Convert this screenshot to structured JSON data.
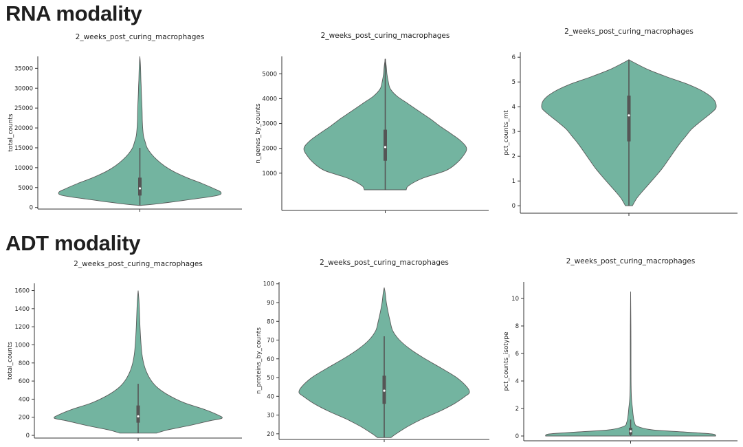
{
  "sections": {
    "rna": {
      "heading": "RNA modality"
    },
    "adt": {
      "heading": "ADT modality"
    }
  },
  "colors": {
    "violin_fill": "#73b4a0",
    "violin_edge": "#5a5a5a",
    "box": "#555555",
    "axis": "#333333"
  },
  "chart_data": [
    {
      "type": "violin",
      "section": "rna",
      "title": "2_weeks_post_curing_macrophages",
      "xlabel": "",
      "ylabel": "total_counts",
      "ylim": [
        -400,
        38000
      ],
      "yticks": [
        0,
        5000,
        10000,
        15000,
        20000,
        25000,
        30000,
        35000
      ],
      "ytick_labels": [
        "0",
        "5000",
        "10000",
        "15000",
        "20000",
        "25000",
        "30000",
        "35000"
      ],
      "categories": [
        "2_weeks_post_curing_macrophages"
      ],
      "density": [
        [
          500,
          0
        ],
        [
          1000,
          0.25
        ],
        [
          2000,
          0.62
        ],
        [
          3000,
          0.95
        ],
        [
          3800,
          1
        ],
        [
          4600,
          0.93
        ],
        [
          6000,
          0.77
        ],
        [
          7500,
          0.58
        ],
        [
          9000,
          0.42
        ],
        [
          10500,
          0.3
        ],
        [
          12000,
          0.21
        ],
        [
          13500,
          0.14
        ],
        [
          15000,
          0.09
        ],
        [
          16500,
          0.065
        ],
        [
          18000,
          0.045
        ],
        [
          20000,
          0.035
        ],
        [
          22000,
          0.03
        ],
        [
          24000,
          0.028
        ],
        [
          26000,
          0.025
        ],
        [
          28000,
          0.02
        ],
        [
          30000,
          0.017
        ],
        [
          32000,
          0.013
        ],
        [
          34000,
          0.01
        ],
        [
          36000,
          0.007
        ],
        [
          38000,
          0
        ]
      ],
      "box": {
        "q1": 3000,
        "median": 4800,
        "q3": 7500,
        "whisker_low": 500,
        "whisker_high": 15000
      }
    },
    {
      "type": "violin",
      "section": "rna",
      "title": "2_weeks_post_curing_macrophages",
      "xlabel": "",
      "ylabel": "n_genes_by_counts",
      "ylim": [
        -500,
        5700
      ],
      "yticks": [
        1000,
        2000,
        3000,
        4000,
        5000
      ],
      "ytick_labels": [
        "1000",
        "2000",
        "3000",
        "4000",
        "5000"
      ],
      "categories": [
        "2_weeks_post_curing_macrophages"
      ],
      "density": [
        [
          330,
          0.25
        ],
        [
          500,
          0.28
        ],
        [
          800,
          0.45
        ],
        [
          1100,
          0.72
        ],
        [
          1400,
          0.85
        ],
        [
          1700,
          0.93
        ],
        [
          2000,
          0.97
        ],
        [
          2300,
          0.9
        ],
        [
          2600,
          0.78
        ],
        [
          2900,
          0.65
        ],
        [
          3200,
          0.53
        ],
        [
          3500,
          0.4
        ],
        [
          3800,
          0.27
        ],
        [
          4100,
          0.14
        ],
        [
          4400,
          0.06
        ],
        [
          4700,
          0.035
        ],
        [
          5000,
          0.02
        ],
        [
          5300,
          0.012
        ],
        [
          5600,
          0
        ]
      ],
      "box": {
        "q1": 1500,
        "median": 2050,
        "q3": 2750,
        "whisker_low": 330,
        "whisker_high": 5600
      }
    },
    {
      "type": "violin",
      "section": "rna",
      "title": "2_weeks_post_curing_macrophages",
      "xlabel": "",
      "ylabel": "pct_counts_mt",
      "ylim": [
        -0.3,
        6.2
      ],
      "yticks": [
        0,
        1,
        2,
        3,
        4,
        5,
        6
      ],
      "ytick_labels": [
        "0",
        "1",
        "2",
        "3",
        "4",
        "5",
        "6"
      ],
      "categories": [
        "2_weeks_post_curing_macrophages"
      ],
      "density": [
        [
          0,
          0.04
        ],
        [
          0.3,
          0.09
        ],
        [
          0.6,
          0.16
        ],
        [
          1.0,
          0.26
        ],
        [
          1.5,
          0.38
        ],
        [
          2.0,
          0.48
        ],
        [
          2.5,
          0.58
        ],
        [
          2.8,
          0.65
        ],
        [
          3.1,
          0.72
        ],
        [
          3.4,
          0.82
        ],
        [
          3.8,
          0.96
        ],
        [
          4.0,
          1
        ],
        [
          4.3,
          0.97
        ],
        [
          4.6,
          0.86
        ],
        [
          4.9,
          0.68
        ],
        [
          5.2,
          0.44
        ],
        [
          5.5,
          0.22
        ],
        [
          5.8,
          0.05
        ],
        [
          5.9,
          0
        ]
      ],
      "box": {
        "q1": 2.6,
        "median": 3.65,
        "q3": 4.45,
        "whisker_low": 0,
        "whisker_high": 5.9
      }
    },
    {
      "type": "violin",
      "section": "adt",
      "title": "2_weeks_post_curing_macrophages",
      "xlabel": "",
      "ylabel": "total_counts",
      "ylim": [
        -30,
        1680
      ],
      "yticks": [
        0,
        200,
        400,
        600,
        800,
        1000,
        1200,
        1400,
        1600
      ],
      "ytick_labels": [
        "0",
        "200",
        "400",
        "600",
        "800",
        "1000",
        "1200",
        "1400",
        "1600"
      ],
      "categories": [
        "2_weeks_post_curing_macrophages"
      ],
      "density": [
        [
          25,
          0.22
        ],
        [
          60,
          0.35
        ],
        [
          110,
          0.62
        ],
        [
          160,
          0.85
        ],
        [
          190,
          1
        ],
        [
          230,
          0.94
        ],
        [
          290,
          0.78
        ],
        [
          360,
          0.55
        ],
        [
          440,
          0.37
        ],
        [
          520,
          0.24
        ],
        [
          600,
          0.16
        ],
        [
          700,
          0.1
        ],
        [
          800,
          0.065
        ],
        [
          900,
          0.045
        ],
        [
          1000,
          0.035
        ],
        [
          1100,
          0.028
        ],
        [
          1200,
          0.022
        ],
        [
          1300,
          0.018
        ],
        [
          1400,
          0.014
        ],
        [
          1500,
          0.009
        ],
        [
          1600,
          0
        ]
      ],
      "box": {
        "q1": 140,
        "median": 210,
        "q3": 330,
        "whisker_low": 25,
        "whisker_high": 570
      }
    },
    {
      "type": "violin",
      "section": "adt",
      "title": "2_weeks_post_curing_macrophages",
      "xlabel": "",
      "ylabel": "n_proteins_by_counts",
      "ylim": [
        17,
        101
      ],
      "yticks": [
        20,
        30,
        40,
        50,
        60,
        70,
        80,
        90,
        100
      ],
      "ytick_labels": [
        "20",
        "30",
        "40",
        "50",
        "60",
        "70",
        "80",
        "90",
        "100"
      ],
      "categories": [
        "2_weeks_post_curing_macrophages"
      ],
      "density": [
        [
          18,
          0.08
        ],
        [
          20,
          0.14
        ],
        [
          24,
          0.28
        ],
        [
          28,
          0.45
        ],
        [
          32,
          0.65
        ],
        [
          36,
          0.82
        ],
        [
          40,
          0.95
        ],
        [
          42,
          1
        ],
        [
          45,
          0.97
        ],
        [
          50,
          0.85
        ],
        [
          55,
          0.67
        ],
        [
          60,
          0.48
        ],
        [
          65,
          0.31
        ],
        [
          70,
          0.18
        ],
        [
          75,
          0.1
        ],
        [
          80,
          0.07
        ],
        [
          85,
          0.045
        ],
        [
          90,
          0.025
        ],
        [
          95,
          0.012
        ],
        [
          98,
          0
        ]
      ],
      "box": {
        "q1": 36,
        "median": 43,
        "q3": 51,
        "whisker_low": 18,
        "whisker_high": 72
      }
    },
    {
      "type": "violin",
      "section": "adt",
      "title": "2_weeks_post_curing_macrophages",
      "xlabel": "",
      "ylabel": "pct_counts_isotype",
      "ylim": [
        -0.35,
        11.2
      ],
      "yticks": [
        0,
        2,
        4,
        6,
        8,
        10
      ],
      "ytick_labels": [
        "0",
        "2",
        "4",
        "6",
        "8",
        "10"
      ],
      "categories": [
        "2_weeks_post_curing_macrophages"
      ],
      "density": [
        [
          0,
          1
        ],
        [
          0.15,
          0.95
        ],
        [
          0.3,
          0.6
        ],
        [
          0.45,
          0.25
        ],
        [
          0.7,
          0.08
        ],
        [
          1.0,
          0.045
        ],
        [
          1.5,
          0.03
        ],
        [
          2.0,
          0.022
        ],
        [
          2.5,
          0.013
        ],
        [
          3.0,
          0.008
        ],
        [
          4.0,
          0.005
        ],
        [
          6.0,
          0.004
        ],
        [
          8.0,
          0.003
        ],
        [
          10.5,
          0
        ]
      ],
      "box": {
        "q1": 0.1,
        "median": 0.35,
        "q3": 0.6,
        "whisker_low": 0,
        "whisker_high": 1.2
      }
    }
  ]
}
